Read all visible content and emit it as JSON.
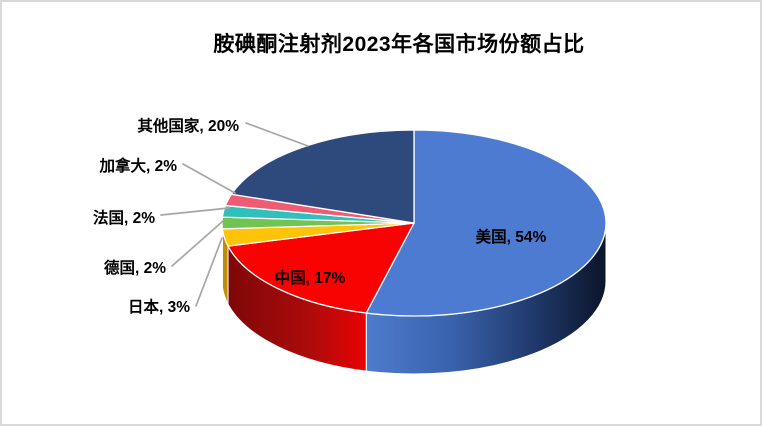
{
  "title": "胺碘酮注射剂2023年各国市场份额占比",
  "chart_data": {
    "type": "pie",
    "style": "3d",
    "title": "胺碘酮注射剂2023年各国市场份额占比",
    "unit": "%",
    "start_angle_deg": 0,
    "direction": "clockwise",
    "legend": "none",
    "background": "#FFFFFF",
    "categories": [
      "美国",
      "中国",
      "日本",
      "德国",
      "法国",
      "加拿大",
      "其他国家"
    ],
    "values": [
      54,
      17,
      3,
      2,
      2,
      2,
      20
    ],
    "data_labels": [
      "美国, 54%",
      "中国, 17%",
      "日本, 3%",
      "德国, 2%",
      "法国, 2%",
      "加拿大, 2%",
      "其他国家, 20%"
    ],
    "colors": [
      "#4C7BD1",
      "#F90202",
      "#FFC408",
      "#71C352",
      "#31BFBB",
      "#EF5B72",
      "#2E4A7D"
    ],
    "leader_line_color": "#A6A6A6",
    "label_text_color": "#000000"
  }
}
